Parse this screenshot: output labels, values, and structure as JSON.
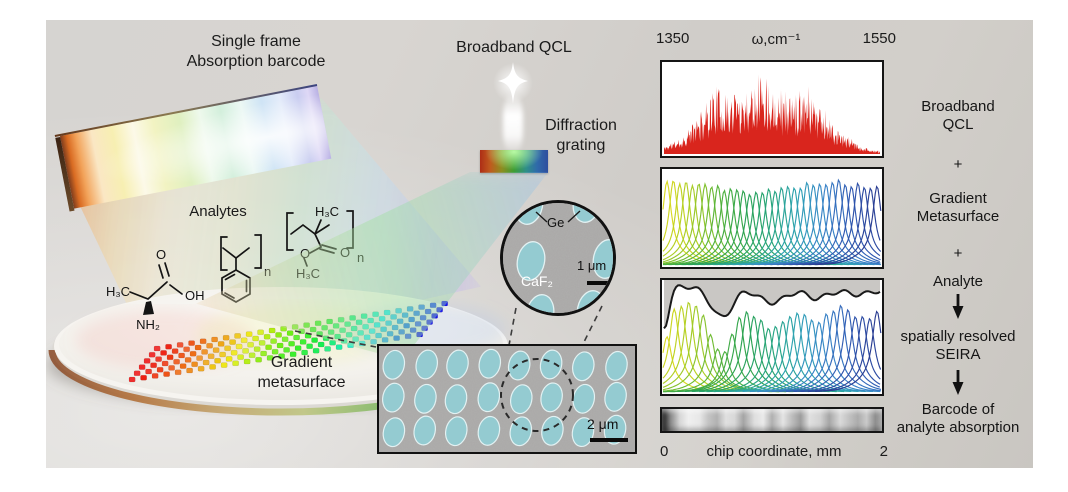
{
  "figure": {
    "left": {
      "title": [
        "Single frame",
        "Absorption barcode"
      ],
      "analytes_label": "Analytes",
      "metasurface_label": [
        "Gradient",
        "metasurface"
      ],
      "molecules": {
        "alanine": {
          "labels": [
            "H₃C",
            "O",
            "OH",
            "NH₂"
          ]
        },
        "polystyrene": {
          "repeat": "n"
        },
        "pmma": {
          "labels": [
            "H₃C",
            "O",
            "O",
            "H₃C"
          ],
          "repeat": "n"
        }
      }
    },
    "middle": {
      "qcl_label": "Broadband QCL",
      "grating_label": [
        "Diffraction",
        "grating"
      ],
      "sem_zoom": {
        "top_material": "Ge",
        "substrate": "CaF₂",
        "scale": "1 μm"
      },
      "sem_overview": {
        "scale": "2 μm"
      }
    },
    "right": {
      "axis_top": {
        "min": "1350",
        "label": "ω,cm⁻¹",
        "max": "1550"
      },
      "axis_bottom": {
        "min": "0",
        "label": "chip coordinate, mm",
        "max": "2"
      },
      "flow": [
        {
          "lines": [
            "Broadband",
            "QCL"
          ]
        },
        {
          "lines": [
            "+"
          ]
        },
        {
          "lines": [
            "Gradient",
            "Metasurface"
          ]
        },
        {
          "lines": [
            "+"
          ]
        },
        {
          "lines": [
            "Analyte"
          ]
        },
        {
          "icon": "down-arrow"
        },
        {
          "lines": [
            "spatially resolved",
            "SEIRA"
          ]
        },
        {
          "icon": "down-arrow"
        },
        {
          "lines": [
            "Barcode of",
            "analyte absorption"
          ]
        }
      ]
    }
  },
  "chart_data": [
    {
      "type": "area",
      "name": "broadband-qcl-spectrum",
      "x_range_cm1": [
        1350,
        1550
      ],
      "description": "noisy broadband QCL emission envelope",
      "color": "#d9251d",
      "n_points": 430
    },
    {
      "type": "line",
      "name": "gradient-metasurface-resonances",
      "x_range_cm1": [
        1350,
        1550
      ],
      "n_peaks": 34,
      "peak_height_rel": 0.8,
      "color_stops": [
        "#d9d91f",
        "#a7cd27",
        "#55b33b",
        "#2ba252",
        "#27a57e",
        "#2fa3b5",
        "#3b86c9",
        "#3059b2",
        "#2a3d92"
      ]
    },
    {
      "type": "line",
      "name": "seira-resonances-with-analyte",
      "x_range_cm1": [
        1350,
        1550
      ],
      "n_peaks": 30,
      "envelope_color": "#1a1a1a",
      "fill_above": "#c9c7c4",
      "absorption_dips_t": [
        0.27,
        0.5,
        0.7,
        0.92
      ]
    },
    {
      "type": "heatmap",
      "name": "absorption-barcode",
      "coordinate_range_mm": [
        0,
        2
      ],
      "palette": "greyscale"
    }
  ]
}
